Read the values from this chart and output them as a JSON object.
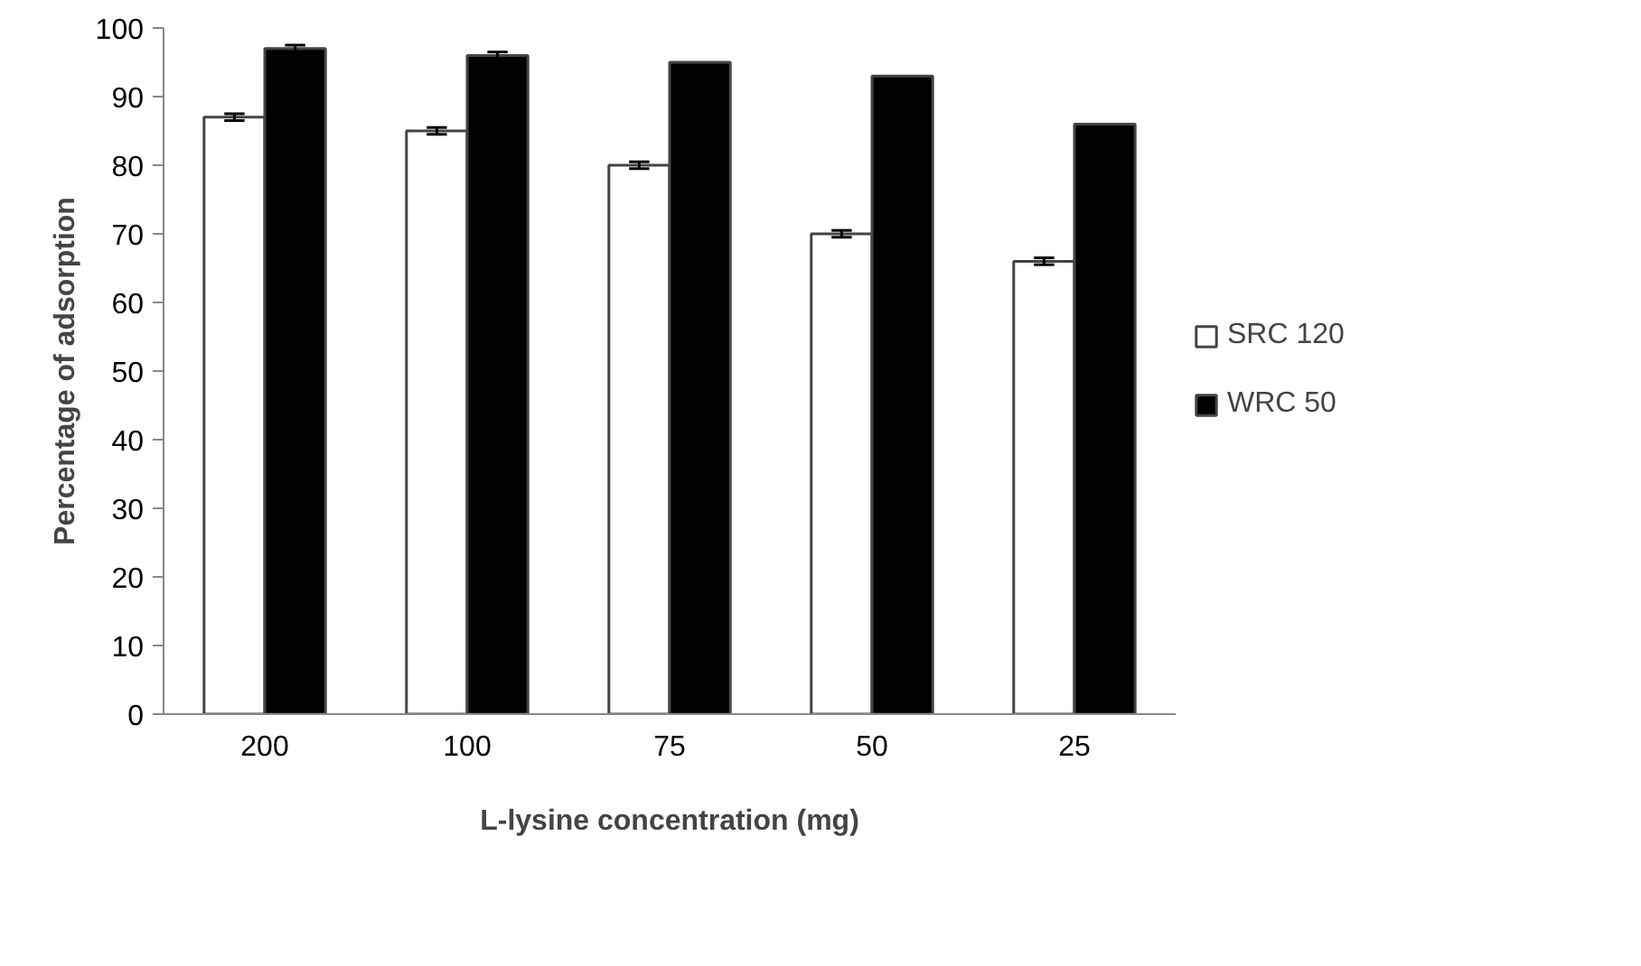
{
  "chart_data": {
    "type": "bar",
    "xlabel": "L-lysine concentration (mg)",
    "ylabel": "Percentage of adsorption",
    "categories": [
      "200",
      "100",
      "75",
      "50",
      "25"
    ],
    "series": [
      {
        "name": "SRC 120",
        "color": "#ffffff",
        "values": [
          87,
          85,
          80,
          70,
          66
        ],
        "errors": [
          0.5,
          0.5,
          0.5,
          0.5,
          0.5
        ]
      },
      {
        "name": "WRC 50",
        "color": "#000000",
        "values": [
          97,
          96,
          95,
          93,
          86
        ],
        "errors": [
          0.5,
          0.5,
          null,
          null,
          null
        ]
      }
    ],
    "ylim": [
      0,
      100
    ],
    "yticks": [
      0,
      10,
      20,
      30,
      40,
      50,
      60,
      70,
      80,
      90,
      100
    ],
    "grid": false,
    "legend": "right"
  }
}
